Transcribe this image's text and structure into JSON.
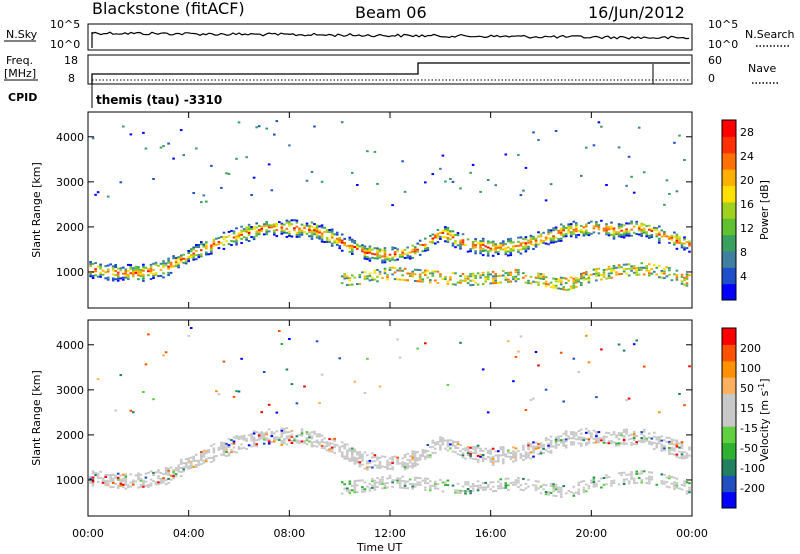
{
  "header": {
    "station": "Blackstone (fitACF)",
    "beam": "Beam 06",
    "date": "16/Jun/2012"
  },
  "noise_panel": {
    "left_label": "N.Sky",
    "left_tick_top": "10^5",
    "left_tick_bottom": "10^0",
    "right_label": "N.Search",
    "right_tick_top": "10^5",
    "right_tick_bottom": "10^0"
  },
  "freq_panel": {
    "left_label_line1": "Freq.",
    "left_label_line2": "[MHz]",
    "left_tick_top": "18",
    "left_tick_bottom": "8",
    "right_label": "Nave",
    "right_tick_top": "60",
    "right_tick_bottom": "0",
    "cpid_label": "CPID",
    "cpid_text": "themis (tau) -3310"
  },
  "colors": {
    "power_scale": [
      "#0000ff",
      "#1f4fc8",
      "#3f7fa0",
      "#3aa060",
      "#5fc030",
      "#a0d020",
      "#ffe000",
      "#ffb000",
      "#ff7000",
      "#ff3000",
      "#ff0000"
    ],
    "velocity_scale": [
      "#ff0000",
      "#ff5000",
      "#ff9000",
      "#ffb060",
      "#c8c8c8",
      "#c8c8c8",
      "#60d040",
      "#30b030",
      "#208060",
      "#2050c0",
      "#0000ff"
    ],
    "scatter_power_main": "#ff6000",
    "scatter_velocity_main": "#c8c8c8"
  },
  "chart_data": [
    {
      "type": "heatmap",
      "title": "Power",
      "ylabel": "Slant Range [km]",
      "xlabel": "Time UT",
      "x_ticks": [
        "00:00",
        "04:00",
        "08:00",
        "12:00",
        "16:00",
        "20:00",
        "00:00"
      ],
      "y_ticks": [
        "1000",
        "2000",
        "3000",
        "4000"
      ],
      "ylim": [
        200,
        4550
      ],
      "xlim_hours": [
        0,
        24
      ],
      "colorbar_label": "Power [dB]",
      "colorbar_ticks": [
        "4",
        "8",
        "12",
        "16",
        "20",
        "24",
        "28"
      ],
      "colorbar_range": [
        0,
        30
      ],
      "scatter_bands": [
        {
          "t": [
            0,
            1,
            2,
            3,
            4,
            5,
            6,
            7,
            8,
            9,
            10,
            11,
            12,
            13,
            14,
            15,
            16,
            17,
            18,
            19,
            20,
            21,
            22,
            23,
            24
          ],
          "range_km": [
            1100,
            1000,
            1000,
            1100,
            1400,
            1650,
            1850,
            2000,
            2000,
            1950,
            1700,
            1450,
            1400,
            1500,
            1900,
            1650,
            1550,
            1600,
            1750,
            1950,
            2000,
            1950,
            2000,
            1800,
            1600
          ]
        },
        {
          "t": [
            10,
            11,
            12,
            13,
            14,
            15,
            16,
            17,
            18,
            19,
            20,
            21,
            22,
            23,
            24
          ],
          "range_km": [
            850,
            900,
            1000,
            950,
            900,
            850,
            900,
            950,
            850,
            750,
            950,
            1050,
            1100,
            1000,
            800
          ]
        }
      ]
    },
    {
      "type": "heatmap",
      "title": "Velocity",
      "ylabel": "Slant Range [km]",
      "xlabel": "Time UT",
      "x_ticks": [
        "00:00",
        "04:00",
        "08:00",
        "12:00",
        "16:00",
        "20:00",
        "00:00"
      ],
      "y_ticks": [
        "1000",
        "2000",
        "3000",
        "4000"
      ],
      "ylim": [
        200,
        4550
      ],
      "xlim_hours": [
        0,
        24
      ],
      "colorbar_label": "Velocity [m s^-1]",
      "colorbar_ticks": [
        "200",
        "100",
        "50",
        "15",
        "-15",
        "-50",
        "-100",
        "-200"
      ],
      "scatter_bands": [
        {
          "t": [
            0,
            1,
            2,
            3,
            4,
            5,
            6,
            7,
            8,
            9,
            10,
            11,
            12,
            13,
            14,
            15,
            16,
            17,
            18,
            19,
            20,
            21,
            22,
            23,
            24
          ],
          "range_km": [
            1100,
            1000,
            1000,
            1100,
            1400,
            1650,
            1850,
            2000,
            2000,
            1950,
            1700,
            1450,
            1400,
            1500,
            1900,
            1650,
            1550,
            1600,
            1750,
            1950,
            2000,
            1950,
            2000,
            1800,
            1600
          ]
        },
        {
          "t": [
            10,
            11,
            12,
            13,
            14,
            15,
            16,
            17,
            18,
            19,
            20,
            21,
            22,
            23,
            24
          ],
          "range_km": [
            850,
            900,
            1000,
            950,
            900,
            850,
            900,
            950,
            850,
            750,
            950,
            1050,
            1100,
            1000,
            800
          ]
        }
      ]
    }
  ]
}
